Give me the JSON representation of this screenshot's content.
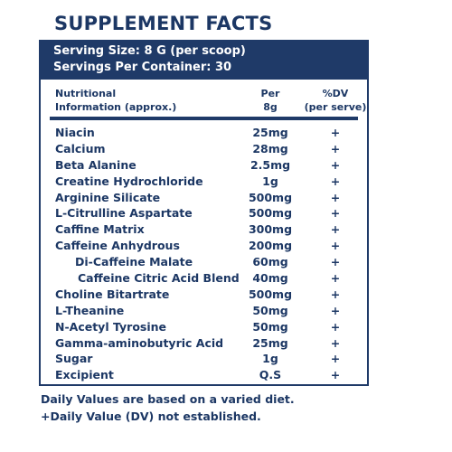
{
  "title": "SUPPLEMENT FACTS",
  "serving_size": "Serving Size: 8 G (per scoop)",
  "servings_per_container": "Servings Per Container: 30",
  "header": {
    "name_line1": "Nutritional",
    "name_line2": "Information (approx.)",
    "per_line1": "Per",
    "per_line2": "8g",
    "dv_line1": "%DV",
    "dv_line2": "(per serve)"
  },
  "rows": [
    {
      "name": "Niacin",
      "per": "25mg",
      "dv": "+"
    },
    {
      "name": "Calcium",
      "per": "28mg",
      "dv": "+"
    },
    {
      "name": "Beta Alanine",
      "per": "2.5mg",
      "dv": "+"
    },
    {
      "name": "Creatine Hydrochloride",
      "per": "1g",
      "dv": "+"
    },
    {
      "name": "Arginine Silicate",
      "per": "500mg",
      "dv": "+"
    },
    {
      "name": "L-Citrulline Aspartate",
      "per": "500mg",
      "dv": "+"
    },
    {
      "name": "Caffine Matrix",
      "per": "300mg",
      "dv": "+"
    },
    {
      "name": "Caffeine Anhydrous",
      "per": "200mg",
      "dv": "+"
    },
    {
      "name": "Di-Caffeine Malate",
      "per": "60mg",
      "dv": "+"
    },
    {
      "name": "Caffeine Citric Acid Blend",
      "per": "40mg",
      "dv": "+"
    },
    {
      "name": "Choline Bitartrate",
      "per": "500mg",
      "dv": "+"
    },
    {
      "name": "L-Theanine",
      "per": "50mg",
      "dv": "+"
    },
    {
      "name": "N-Acetyl Tyrosine",
      "per": "50mg",
      "dv": "+"
    },
    {
      "name": "Gamma-aminobutyric Acid",
      "per": "25mg",
      "dv": "+"
    },
    {
      "name": "Sugar",
      "per": "1g",
      "dv": "+"
    },
    {
      "name": "Excipient",
      "per": "Q.S",
      "dv": "+"
    }
  ],
  "footnote1": "Daily Values are based on a varied diet.",
  "footnote2": "+Daily Value (DV) not established."
}
